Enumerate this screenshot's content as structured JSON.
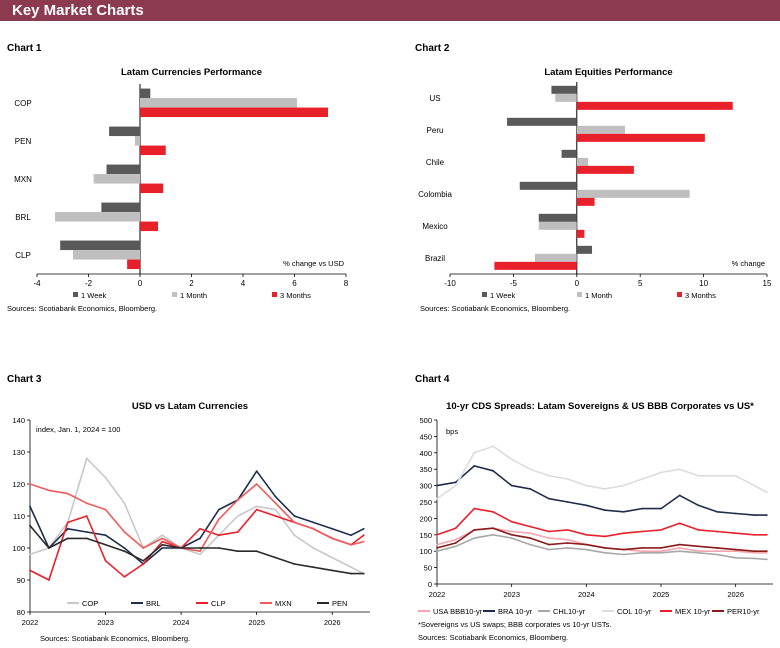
{
  "header": {
    "title": "Key Market Charts"
  },
  "charts": [
    {
      "label": "Chart 1",
      "sources": "Sources: Scotiabank Economics, Bloomberg."
    },
    {
      "label": "Chart 2",
      "sources": "Sources: Scotiabank Economics, Bloomberg."
    },
    {
      "label": "Chart 3",
      "sources": "Sources: Scotiabank Economics, Bloomberg."
    },
    {
      "label": "Chart 4",
      "sources": "Sources: Scotiabank Economics, Bloomberg.",
      "footnote": "*Sovereigns vs US swaps; BBB corporates vs 10-yr USTs."
    }
  ],
  "chart_data": [
    {
      "type": "bar",
      "orientation": "horizontal",
      "title": "Latam Currencies Performance",
      "annotation": "% change vs USD",
      "categories": [
        "COP",
        "PEN",
        "MXN",
        "BRL",
        "CLP"
      ],
      "series": [
        {
          "name": "1 Week",
          "color": "#595959",
          "values": [
            0.4,
            -1.2,
            -1.3,
            -1.5,
            -3.1
          ]
        },
        {
          "name": "1 Month",
          "color": "#bfbfbf",
          "values": [
            6.1,
            -0.2,
            -1.8,
            -3.3,
            -2.6
          ]
        },
        {
          "name": "3 Months",
          "color": "#e8202a",
          "values": [
            7.3,
            1.0,
            0.9,
            0.7,
            -0.5
          ]
        }
      ],
      "xlim": [
        -4,
        8
      ],
      "xticks": [
        -4,
        -2,
        0,
        2,
        4,
        6,
        8
      ],
      "legend": "bottom"
    },
    {
      "type": "bar",
      "orientation": "horizontal",
      "title": "Latam Equities Performance",
      "annotation": "% change",
      "categories": [
        "US",
        "Peru",
        "Chile",
        "Colombia",
        "Mexico",
        "Brazil"
      ],
      "series": [
        {
          "name": "1 Week",
          "color": "#595959",
          "values": [
            -2.0,
            -5.5,
            -1.2,
            -4.5,
            -3.0,
            1.2
          ]
        },
        {
          "name": "1 Month",
          "color": "#bfbfbf",
          "values": [
            -1.7,
            3.8,
            0.9,
            8.9,
            -3.0,
            -3.3
          ]
        },
        {
          "name": "3 Months",
          "color": "#e8202a",
          "values": [
            12.3,
            10.1,
            4.5,
            1.4,
            0.6,
            -6.5
          ]
        }
      ],
      "xlim": [
        -10,
        15
      ],
      "xticks": [
        -10,
        -5,
        0,
        5,
        10,
        15
      ],
      "legend": "bottom"
    },
    {
      "type": "line",
      "title": "USD vs Latam Currencies",
      "annotation": "index, Jan. 1, 2024 = 100",
      "ylim": [
        80,
        140
      ],
      "yticks": [
        80,
        90,
        100,
        110,
        120,
        130,
        140
      ],
      "xticks": [
        "2022",
        "2023",
        "2024",
        "2025",
        "2026"
      ],
      "x": [
        "2022-01",
        "2022-04",
        "2022-07",
        "2022-10",
        "2023-01",
        "2023-04",
        "2023-07",
        "2023-10",
        "2024-01",
        "2024-04",
        "2024-07",
        "2024-10",
        "2025-01",
        "2025-04",
        "2025-07",
        "2025-10",
        "2026-01",
        "2026-04",
        "2026-06"
      ],
      "series": [
        {
          "name": "COP",
          "color": "#c8c8c8",
          "values": [
            98,
            100,
            108,
            128,
            122,
            114,
            100,
            104,
            100,
            98,
            104,
            110,
            113,
            112,
            104,
            100,
            97,
            94,
            92
          ]
        },
        {
          "name": "BRL",
          "color": "#1f2d4d",
          "values": [
            113,
            100,
            106,
            105,
            104,
            100,
            95,
            100,
            100,
            103,
            112,
            115,
            124,
            116,
            110,
            108,
            106,
            104,
            106
          ]
        },
        {
          "name": "CLP",
          "color": "#e8202a",
          "values": [
            93,
            90,
            108,
            110,
            96,
            91,
            95,
            102,
            100,
            106,
            104,
            105,
            112,
            110,
            108,
            106,
            103,
            101,
            104
          ]
        },
        {
          "name": "MXN",
          "color": "#f05a5a",
          "values": [
            120,
            118,
            117,
            114,
            112,
            105,
            100,
            103,
            100,
            99,
            109,
            115,
            120,
            114,
            108,
            106,
            103,
            101,
            102
          ]
        },
        {
          "name": "PEN",
          "color": "#2a2a2a",
          "values": [
            107,
            100,
            103,
            103,
            101,
            99,
            96,
            101,
            100,
            100,
            100,
            99,
            99,
            97,
            95,
            94,
            93,
            92,
            92
          ]
        }
      ],
      "legend": "bottom"
    },
    {
      "type": "line",
      "title": "10-yr CDS Spreads: Latam Sovereigns & US BBB Corporates vs US*",
      "annotation": "bps",
      "ylim": [
        0,
        500
      ],
      "yticks": [
        0,
        50,
        100,
        150,
        200,
        250,
        300,
        350,
        400,
        450,
        500
      ],
      "xticks": [
        "2022",
        "2023",
        "2024",
        "2025",
        "2026"
      ],
      "x": [
        "2022-01",
        "2022-04",
        "2022-07",
        "2022-10",
        "2023-01",
        "2023-04",
        "2023-07",
        "2023-10",
        "2024-01",
        "2024-04",
        "2024-07",
        "2024-10",
        "2025-01",
        "2025-04",
        "2025-07",
        "2025-10",
        "2026-01",
        "2026-04",
        "2026-06"
      ],
      "series": [
        {
          "name": "USA BBB10-yr",
          "color": "#f4a6b0",
          "values": [
            120,
            135,
            165,
            170,
            160,
            155,
            140,
            135,
            120,
            110,
            105,
            100,
            100,
            110,
            100,
            100,
            100,
            95,
            95
          ]
        },
        {
          "name": "BRA 10-yr",
          "color": "#1f2d4d",
          "values": [
            300,
            310,
            360,
            345,
            300,
            290,
            260,
            250,
            240,
            225,
            220,
            230,
            230,
            270,
            240,
            220,
            215,
            210,
            210
          ]
        },
        {
          "name": "CHL10-yr",
          "color": "#a8a8a8",
          "values": [
            100,
            115,
            140,
            150,
            140,
            120,
            105,
            110,
            105,
            95,
            90,
            95,
            95,
            100,
            95,
            90,
            80,
            78,
            75
          ]
        },
        {
          "name": "COL 10-yr",
          "color": "#dcdcdc",
          "values": [
            260,
            300,
            400,
            420,
            380,
            350,
            330,
            320,
            300,
            290,
            300,
            320,
            340,
            350,
            330,
            330,
            330,
            300,
            280
          ]
        },
        {
          "name": "MEX 10-yr",
          "color": "#e8202a",
          "values": [
            150,
            170,
            230,
            220,
            190,
            175,
            160,
            165,
            150,
            145,
            155,
            160,
            165,
            185,
            165,
            160,
            155,
            150,
            150
          ]
        },
        {
          "name": "PER10-yr",
          "color": "#8b1a1a",
          "values": [
            110,
            125,
            165,
            170,
            150,
            140,
            120,
            125,
            120,
            110,
            105,
            110,
            110,
            120,
            115,
            110,
            105,
            100,
            100
          ]
        }
      ],
      "legend": "bottom"
    }
  ]
}
